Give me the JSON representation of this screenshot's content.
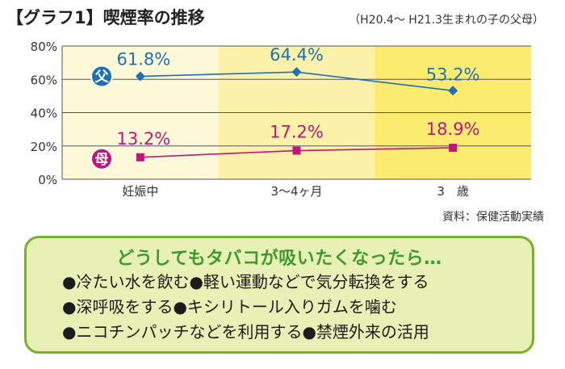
{
  "title": "【グラフ1】喫煙率の推移",
  "subtitle": "（H20.4～ H21.3生まれの子の父母）",
  "source": "資料：保健活動実績",
  "tips": {
    "heading": "どうしてもタバコが吸いたくなったら…",
    "lines": [
      "●冷たい水を飲む●軽い運動などで気分転換をする",
      "●深呼吸をする●キシリトール入りガムを噛む",
      "●ニコチンパッチなどを利用する●禁煙外来の活用"
    ]
  },
  "chart_data": {
    "type": "line",
    "categories": [
      "妊娠中",
      "3～4ヶ月",
      "3　歳"
    ],
    "y_ticks": [
      "0%",
      "20%",
      "40%",
      "60%",
      "80%"
    ],
    "ylim": [
      0,
      80
    ],
    "grid": true,
    "series": [
      {
        "name": "父",
        "values": [
          61.8,
          64.4,
          53.2
        ],
        "labels": [
          "61.8%",
          "64.4%",
          "53.2%"
        ],
        "color": "#1f6fb5",
        "marker": "diamond"
      },
      {
        "name": "母",
        "values": [
          13.2,
          17.2,
          18.9
        ],
        "labels": [
          "13.2%",
          "17.2%",
          "18.9%"
        ],
        "color": "#c0167a",
        "marker": "square"
      }
    ],
    "band_colors": [
      "#fdf8d8",
      "#fbf1a8",
      "#fbeb6e"
    ]
  }
}
